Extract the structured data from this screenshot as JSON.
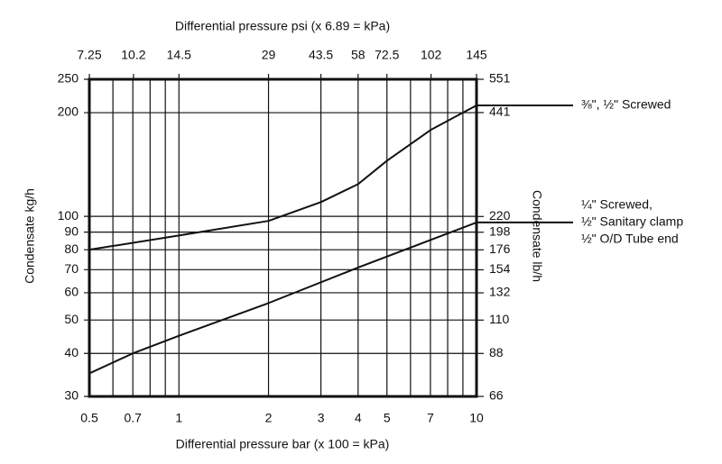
{
  "chart_data": {
    "type": "line",
    "x_label": "Differential pressure bar (x 100 = kPa)",
    "x2_label": "Differential pressure psi (x 6.89 = kPa)",
    "y_label": "Condensate kg/h",
    "y2_label": "Condensate lb/h",
    "log_x": true,
    "log_y": true,
    "grid": true,
    "xlim": [
      0.5,
      10
    ],
    "xticks": [
      0.5,
      0.7,
      1,
      2,
      3,
      4,
      5,
      7,
      10
    ],
    "xminor": [
      0.6,
      0.8,
      0.9,
      6,
      8,
      9
    ],
    "x2lim": [
      7.25,
      145
    ],
    "x2ticks": [
      7.25,
      10.2,
      14.5,
      29,
      43.5,
      58,
      72.5,
      102,
      145
    ],
    "ylim": [
      30,
      250
    ],
    "yticks": [
      30,
      40,
      50,
      60,
      70,
      80,
      90,
      100,
      200,
      250
    ],
    "y2lim": [
      66,
      551
    ],
    "y2ticks": [
      66,
      88,
      110,
      132,
      154,
      176,
      198,
      220,
      441,
      551
    ],
    "series": [
      {
        "label": [
          "⅜\", ½\" Screwed"
        ],
        "color": "#111111",
        "x": [
          0.5,
          1,
          2,
          3,
          4,
          5,
          7,
          10
        ],
        "values": [
          80,
          88,
          97,
          110,
          124,
          145,
          178,
          210
        ]
      },
      {
        "label": [
          "¼\" Screwed,",
          "½\" Sanitary clamp",
          "½\" O/D Tube end"
        ],
        "color": "#111111",
        "x": [
          0.5,
          0.7,
          1,
          2,
          4,
          10
        ],
        "values": [
          35,
          40,
          45,
          56,
          71,
          96
        ]
      }
    ]
  }
}
